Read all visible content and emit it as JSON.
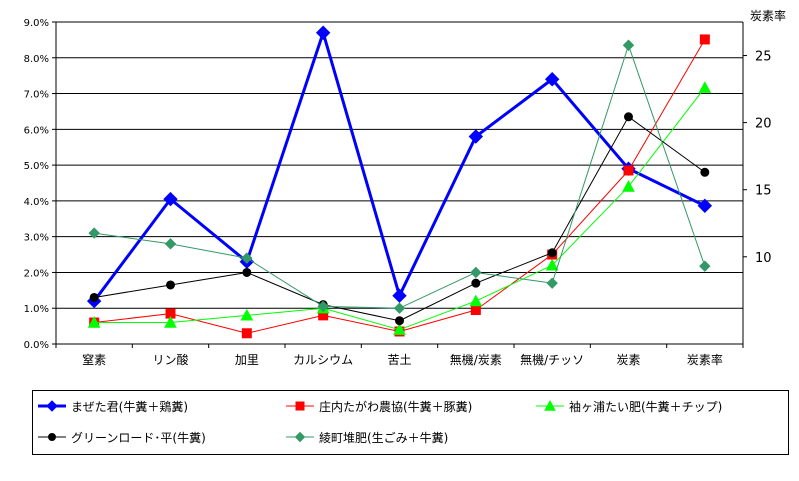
{
  "chart_data": {
    "type": "line",
    "categories": [
      "窒素",
      "リン酸",
      "加里",
      "カルシウム",
      "苦土",
      "無機/炭素",
      "無機/チッソ",
      "炭素",
      "炭素率"
    ],
    "left_axis": {
      "ticks": [
        "0.0%",
        "1.0%",
        "2.0%",
        "3.0%",
        "4.0%",
        "5.0%",
        "6.0%",
        "7.0%",
        "8.0%",
        "9.0%"
      ],
      "ylim": [
        0,
        9
      ]
    },
    "right_axis": {
      "label": "炭素率",
      "ticks": [
        "10",
        "15",
        "20",
        "25"
      ],
      "ylim": [
        3.5,
        27.5
      ]
    },
    "grid": true,
    "legend_position": "bottom",
    "series": [
      {
        "name": "まぜた君(牛糞＋鶏糞)",
        "color": "#0000ff",
        "marker": "diamond",
        "width": 3,
        "values": [
          1.2,
          4.05,
          2.3,
          8.7,
          1.35,
          5.8,
          7.4,
          4.9,
          null
        ],
        "carbon_ratio": 13.8
      },
      {
        "name": "庄内たがわ農協(牛糞＋豚糞)",
        "color": "#ff0000",
        "marker": "square",
        "width": 1,
        "values": [
          0.6,
          0.85,
          0.3,
          0.8,
          0.35,
          0.95,
          2.5,
          4.85,
          null
        ],
        "carbon_ratio": 26.2
      },
      {
        "name": "袖ヶ浦たい肥(牛糞＋チップ)",
        "color": "#00ff00",
        "marker": "triangle",
        "width": 1,
        "values": [
          0.6,
          0.6,
          0.8,
          1.0,
          0.4,
          1.2,
          2.2,
          4.4,
          null
        ],
        "carbon_ratio": 22.6
      },
      {
        "name": "グリーンロード･平(牛糞)",
        "color": "#000000",
        "marker": "circle",
        "width": 1,
        "values": [
          1.3,
          1.65,
          2.0,
          1.1,
          0.65,
          1.7,
          2.55,
          6.35,
          null
        ],
        "carbon_ratio": 16.3
      },
      {
        "name": "綾町堆肥(生ごみ＋牛糞)",
        "color": "#339966",
        "marker": "diamond",
        "width": 1,
        "values": [
          3.1,
          2.8,
          2.4,
          1.05,
          1.0,
          2.0,
          1.7,
          8.35,
          null
        ],
        "carbon_ratio": 9.3
      }
    ]
  }
}
